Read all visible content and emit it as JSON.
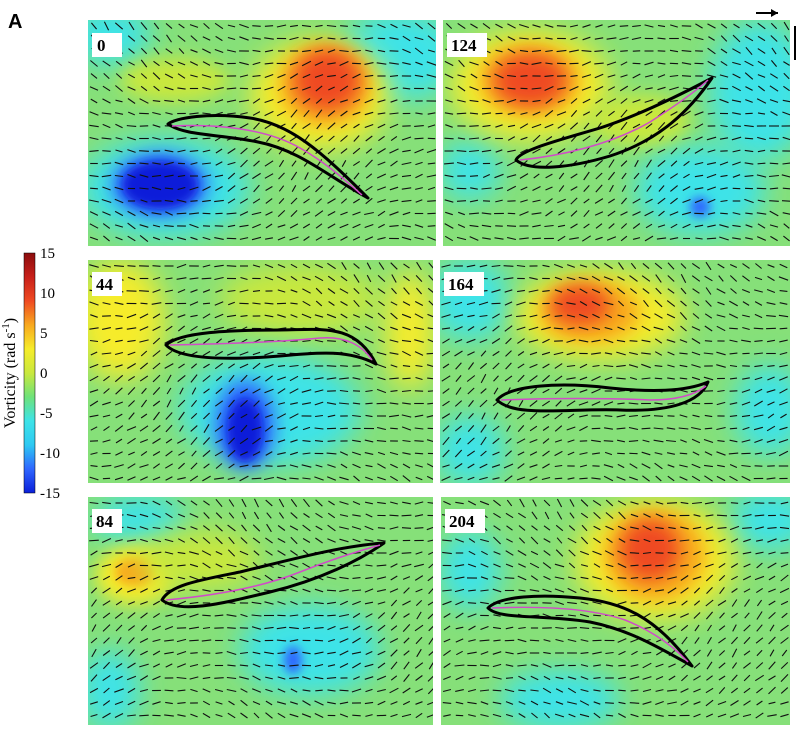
{
  "figure": {
    "panel_letter": "A",
    "colorbar": {
      "label": "Vorticity (rad s",
      "label_superscript": "-1",
      "label_close": ")",
      "ticks": [
        "15",
        "10",
        "5",
        "0",
        "-5",
        "-10",
        "-15"
      ],
      "tick_values": [
        15,
        10,
        5,
        0,
        -5,
        -10,
        -15
      ],
      "range": [
        -15,
        15
      ],
      "colormap": [
        "#0a1fd9",
        "#2f66ff",
        "#2ec9f2",
        "#3de3e8",
        "#6ee27a",
        "#c9e83e",
        "#f6ec2a",
        "#f8a91f",
        "#ef4a22",
        "#c8201a",
        "#8b0d0d"
      ]
    },
    "scale_markers": {
      "arrow": "velocity-scale-arrow",
      "bar": "length-scale-bar"
    },
    "panels": [
      {
        "label": "0",
        "vortices": [
          {
            "sign": "positive",
            "strength": 13
          },
          {
            "sign": "negative",
            "strength": -13
          }
        ]
      },
      {
        "label": "124",
        "vortices": [
          {
            "sign": "positive",
            "strength": 12
          },
          {
            "sign": "negative",
            "strength": -6
          }
        ]
      },
      {
        "label": "44",
        "vortices": [
          {
            "sign": "negative",
            "strength": -11
          }
        ]
      },
      {
        "label": "164",
        "vortices": [
          {
            "sign": "positive",
            "strength": 10
          },
          {
            "sign": "negative",
            "strength": -3
          }
        ]
      },
      {
        "label": "84",
        "vortices": [
          {
            "sign": "positive",
            "strength": 7
          },
          {
            "sign": "negative",
            "strength": -6
          }
        ]
      },
      {
        "label": "204",
        "vortices": [
          {
            "sign": "positive",
            "strength": 11
          }
        ]
      }
    ]
  }
}
